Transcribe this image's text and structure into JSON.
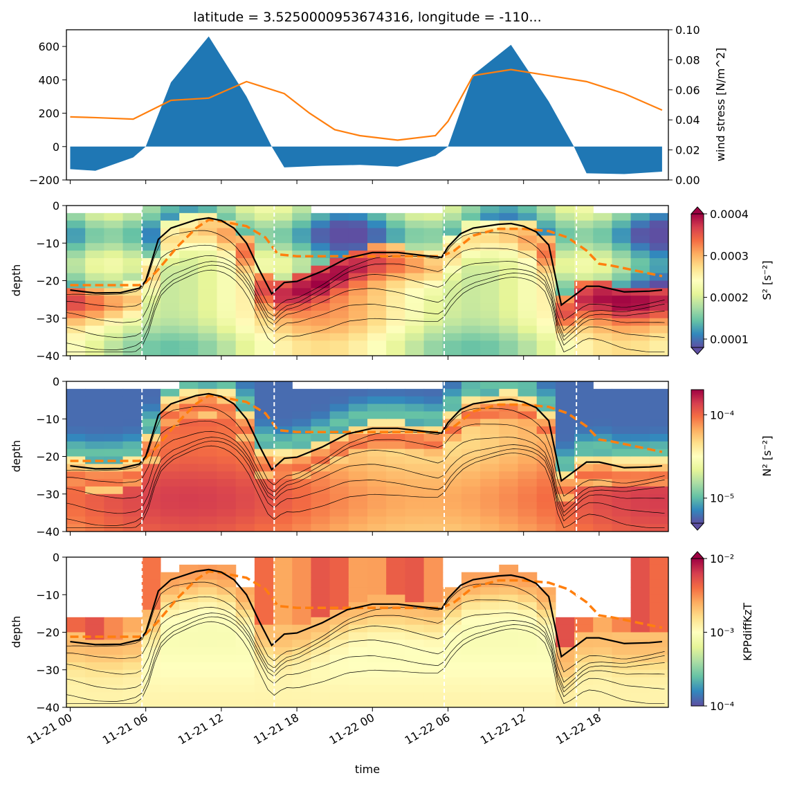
{
  "chart_data": [
    {
      "type": "area",
      "title": "latitude = 3.5250000953674316, longitude = -110...",
      "xlabel": "",
      "ylabel": "",
      "ylabel_right": "wind stress [N/m^2]",
      "x": [
        "2023-11-21T00:00",
        "2023-11-21T02:00",
        "2023-11-21T05:00",
        "2023-11-21T06:00",
        "2023-11-21T08:00",
        "2023-11-21T11:00",
        "2023-11-21T14:00",
        "2023-11-21T16:00",
        "2023-11-21T17:00",
        "2023-11-21T20:00",
        "2023-11-21T23:00",
        "2023-11-22T02:00",
        "2023-11-22T05:00",
        "2023-11-22T06:00",
        "2023-11-22T08:00",
        "2023-11-22T11:00",
        "2023-11-22T14:00",
        "2023-11-22T16:00",
        "2023-11-22T17:00",
        "2023-11-22T20:00",
        "2023-11-22T23:00"
      ],
      "ylim": [
        -200,
        700
      ],
      "y2lim": [
        0.0,
        0.1
      ],
      "yticks": [
        -200,
        0,
        200,
        400,
        600
      ],
      "y2ticks": [
        "0.00",
        "0.02",
        "0.04",
        "0.06",
        "0.08",
        "0.10"
      ],
      "series": [
        {
          "color": "#1f77b4",
          "kind": "fill",
          "axis": "left",
          "x": [
            "2023-11-21T00:00",
            "2023-11-21T02:00",
            "2023-11-21T05:00",
            "2023-11-21T06:00",
            "2023-11-21T08:00",
            "2023-11-21T11:00",
            "2023-11-21T14:00",
            "2023-11-21T16:00",
            "2023-11-21T17:00",
            "2023-11-21T20:00",
            "2023-11-21T23:00",
            "2023-11-22T02:00",
            "2023-11-22T05:00",
            "2023-11-22T06:00",
            "2023-11-22T08:00",
            "2023-11-22T11:00",
            "2023-11-22T14:00",
            "2023-11-22T16:00",
            "2023-11-22T17:00",
            "2023-11-22T20:00",
            "2023-11-22T23:00"
          ],
          "values": [
            -135,
            -145,
            -65,
            0,
            385,
            660,
            300,
            0,
            -125,
            -115,
            -110,
            -120,
            -55,
            0,
            430,
            610,
            270,
            0,
            -160,
            -165,
            -150
          ]
        },
        {
          "color": "#ff7f0e",
          "kind": "line",
          "axis": "right",
          "x": [
            "2023-11-21T00:00",
            "2023-11-21T02:00",
            "2023-11-21T05:00",
            "2023-11-21T08:00",
            "2023-11-21T11:00",
            "2023-11-21T14:00",
            "2023-11-21T17:00",
            "2023-11-21T19:00",
            "2023-11-21T21:00",
            "2023-11-21T23:00",
            "2023-11-22T02:00",
            "2023-11-22T05:00",
            "2023-11-22T06:00",
            "2023-11-22T08:00",
            "2023-11-22T11:00",
            "2023-11-22T14:00",
            "2023-11-22T17:00",
            "2023-11-22T20:00",
            "2023-11-22T23:00"
          ],
          "values": [
            0.042,
            0.0415,
            0.0405,
            0.053,
            0.0545,
            0.0655,
            0.0575,
            0.0445,
            0.0335,
            0.0295,
            0.0265,
            0.0295,
            0.039,
            0.0695,
            0.0735,
            0.0695,
            0.0655,
            0.0575,
            0.0465
          ]
        }
      ]
    },
    {
      "type": "heatmap",
      "xlabel": "",
      "ylabel": "depth",
      "ylim": [
        -40,
        0
      ],
      "yticks": [
        -40,
        -30,
        -20,
        -10,
        0
      ],
      "colorbar_label": "S² [s⁻²]",
      "colorbar_ticks": [
        "0.0001",
        "0.0002",
        "0.0003",
        "0.0004"
      ],
      "colorbar_range": [
        8e-05,
        0.0004
      ],
      "colormap": "Spectral_r"
    },
    {
      "type": "heatmap",
      "xlabel": "",
      "ylabel": "depth",
      "ylim": [
        -40,
        0
      ],
      "yticks": [
        -40,
        -30,
        -20,
        -10,
        0
      ],
      "colorbar_label": "N² [s⁻²]",
      "colorbar_ticks": [
        "10⁻⁵",
        "10⁻⁴"
      ],
      "colorbar_scale": "log",
      "colorbar_range": [
        5e-06,
        0.0002
      ],
      "colormap": "Spectral_r"
    },
    {
      "type": "heatmap",
      "xlabel": "time",
      "ylabel": "depth",
      "ylim": [
        -40,
        0
      ],
      "yticks": [
        -40,
        -30,
        -20,
        -10,
        0
      ],
      "colorbar_label": "KPPdiffKzT",
      "colorbar_ticks": [
        "10⁻⁴",
        "10⁻³",
        "10⁻²"
      ],
      "colorbar_scale": "log",
      "colorbar_range": [
        0.0001,
        0.01
      ],
      "colormap": "Spectral_r",
      "xticks": [
        "11-21 00",
        "11-21 06",
        "11-21 12",
        "11-21 18",
        "11-22 00",
        "11-22 06",
        "11-22 12",
        "11-22 18"
      ]
    }
  ],
  "overlays": {
    "boundary_layer_depth": {
      "color": "#000000",
      "x": [
        "2023-11-21T00:00",
        "2023-11-21T02:00",
        "2023-11-21T04:00",
        "2023-11-21T05:30",
        "2023-11-21T06:00",
        "2023-11-21T07:00",
        "2023-11-21T08:00",
        "2023-11-21T10:00",
        "2023-11-21T11:00",
        "2023-11-21T12:00",
        "2023-11-21T13:00",
        "2023-11-21T14:00",
        "2023-11-21T15:00",
        "2023-11-21T16:00",
        "2023-11-21T17:00",
        "2023-11-21T18:00",
        "2023-11-21T20:00",
        "2023-11-21T22:00",
        "2023-11-22T00:00",
        "2023-11-22T02:00",
        "2023-11-22T04:00",
        "2023-11-22T05:30",
        "2023-11-22T06:00",
        "2023-11-22T07:00",
        "2023-11-22T08:00",
        "2023-11-22T10:00",
        "2023-11-22T11:00",
        "2023-11-22T12:00",
        "2023-11-22T13:00",
        "2023-11-22T14:00",
        "2023-11-22T15:00",
        "2023-11-22T16:00",
        "2023-11-22T17:00",
        "2023-11-22T18:00",
        "2023-11-22T20:00",
        "2023-11-22T22:00",
        "2023-11-22T23:00"
      ],
      "values": [
        -22.5,
        -23.3,
        -23.2,
        -22,
        -20,
        -9,
        -6,
        -3.8,
        -3.3,
        -4,
        -6,
        -10,
        -17,
        -23.5,
        -20.5,
        -20.2,
        -17.5,
        -14,
        -12.5,
        -12.5,
        -13.3,
        -13.8,
        -11,
        -7.5,
        -6,
        -5,
        -4.8,
        -5.5,
        -7,
        -10.5,
        -26.5,
        -24,
        -21.5,
        -21.5,
        -23,
        -22.8,
        -22.5
      ]
    },
    "mixed_layer_depth": {
      "color": "#ff7f0e",
      "x": [
        "2023-11-21T00:00",
        "2023-11-21T05:30",
        "2023-11-21T06:00",
        "2023-11-21T07:00",
        "2023-11-21T08:30",
        "2023-11-21T10:00",
        "2023-11-21T11:00",
        "2023-11-21T12:00",
        "2023-11-21T14:00",
        "2023-11-21T15:30",
        "2023-11-21T16:30",
        "2023-11-21T18:00",
        "2023-11-21T21:00",
        "2023-11-22T00:00",
        "2023-11-22T03:00",
        "2023-11-22T05:30",
        "2023-11-22T06:30",
        "2023-11-22T08:00",
        "2023-11-22T10:00",
        "2023-11-22T12:00",
        "2023-11-22T14:00",
        "2023-11-22T15:30",
        "2023-11-22T17:00",
        "2023-11-22T18:00",
        "2023-11-22T19:00",
        "2023-11-22T23:00"
      ],
      "values": [
        -21.2,
        -21.2,
        -20.5,
        -17,
        -11,
        -6,
        -3.8,
        -4.2,
        -5.5,
        -8.5,
        -13,
        -13.5,
        -13.5,
        -13.5,
        -13.5,
        -13.5,
        -12,
        -8,
        -6.2,
        -6.2,
        -6.8,
        -8.5,
        -12,
        -15.5,
        -16,
        -18.8
      ]
    },
    "vertical_markers": [
      "2023-11-21T05:42",
      "2023-11-21T16:12",
      "2023-11-22T05:42",
      "2023-11-22T16:12"
    ]
  }
}
